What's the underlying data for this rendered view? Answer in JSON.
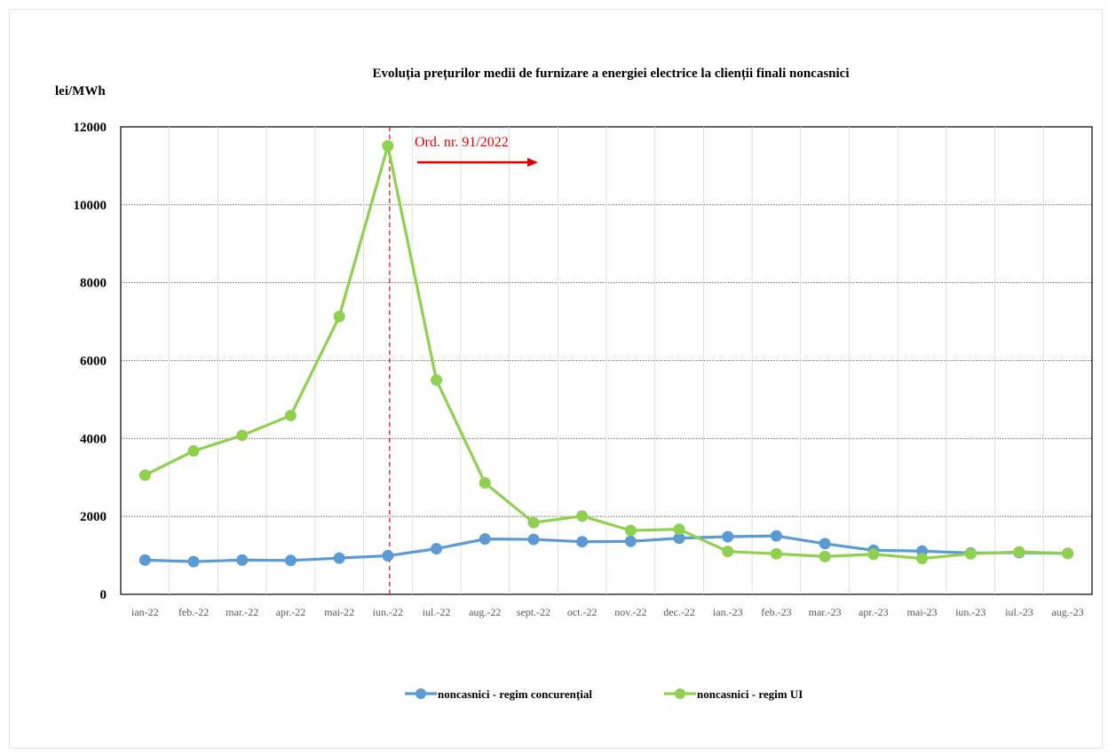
{
  "chart_data": {
    "type": "line",
    "title": "Evoluția prețurilor medii de furnizare a energiei electrice la clienții finali noncasnici",
    "ylabel": "lei/MWh",
    "xlabel": "",
    "ylim": [
      0,
      12000
    ],
    "yticks": [
      0,
      2000,
      4000,
      6000,
      8000,
      10000,
      12000
    ],
    "grid": true,
    "legend_position": "bottom",
    "categories": [
      "ian-22",
      "feb.-22",
      "mar.-22",
      "apr.-22",
      "mai-22",
      "iun.-22",
      "iul.-22",
      "aug.-22",
      "sept.-22",
      "oct.-22",
      "nov.-22",
      "dec.-22",
      "ian.-23",
      "feb.-23",
      "mar.-23",
      "apr.-23",
      "mai-23",
      "iun.-23",
      "iul.-23",
      "aug.-23"
    ],
    "series": [
      {
        "name": "noncasnici - regim concurențial",
        "color": "#5b9bd5",
        "values": [
          880,
          840,
          880,
          870,
          930,
          990,
          1170,
          1420,
          1410,
          1350,
          1360,
          1440,
          1480,
          1500,
          1300,
          1130,
          1110,
          1060,
          1070,
          1050
        ]
      },
      {
        "name": "noncasnici - regim UI",
        "color": "#8fd14f",
        "values": [
          3060,
          3680,
          4080,
          4590,
          7130,
          11510,
          5500,
          2860,
          1840,
          2010,
          1640,
          1670,
          1100,
          1040,
          970,
          1030,
          920,
          1040,
          1090,
          1050
        ]
      }
    ],
    "annotation": {
      "text": "Ord. nr. 91/2022",
      "category": "iun.-22",
      "color": "#e00000"
    }
  }
}
